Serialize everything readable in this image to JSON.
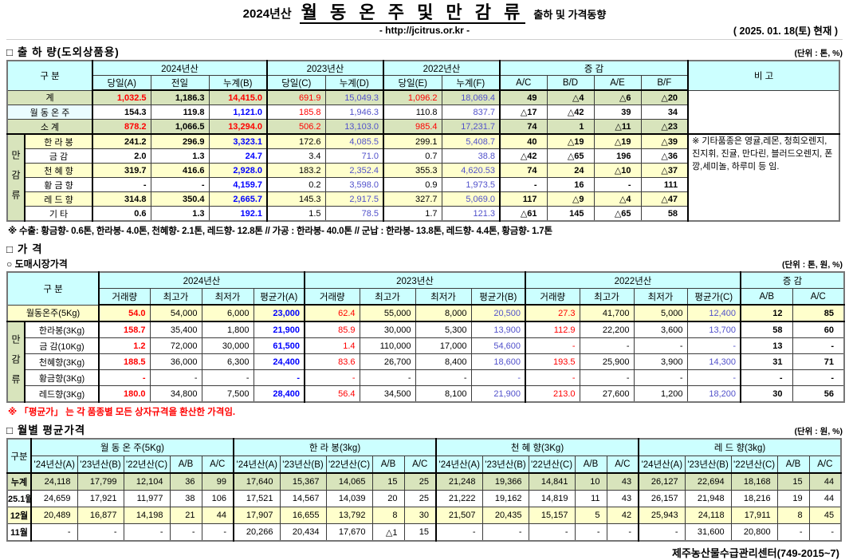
{
  "header": {
    "season": "2024년산",
    "title": "월 동 온 주 및 만 감 류",
    "subtitle": "출하 및 가격동향",
    "url": "- http://jcitrus.or.kr -",
    "date": "( 2025. 01. 18(토) 현재 )"
  },
  "colors": {
    "red": "#ff0000",
    "blue_bold": "#0000ff",
    "blue": "#5151cb",
    "header_bg": "#ccffff",
    "green_row": "#d8e4bc",
    "yellow_row": "#ffffcc"
  },
  "shipment": {
    "section_title": "□ 출 하 량(도외상품용)",
    "unit": "(단위 : 톤, %)",
    "group_label": "만감류",
    "head": {
      "gubun": "구      분",
      "y2024": "2024년산",
      "y2023": "2023년산",
      "y2022": "2022년산",
      "change": "증      감",
      "remark": "비 고",
      "cols": [
        "당일(A)",
        "전일",
        "누계(B)",
        "당일(C)",
        "누계(D)",
        "당일(E)",
        "누계(F)",
        "A/C",
        "B/D",
        "A/E",
        "B/F"
      ]
    },
    "rows": [
      {
        "type": "total",
        "bg": "green",
        "label": "계",
        "values": [
          "1,032.5",
          "1,186.3",
          "14,415.0",
          "691.9",
          "15,049.3",
          "1,096.2",
          "18,069.4",
          "49",
          "△4",
          "△6",
          "△20"
        ]
      },
      {
        "type": "wdj",
        "bg": "white",
        "label": "월 동 온 주",
        "values": [
          "154.3",
          "119.8",
          "1,121.0",
          "185.8",
          "1,946.3",
          "110.8",
          "837.7",
          "△17",
          "△42",
          "39",
          "34"
        ]
      },
      {
        "type": "total",
        "bg": "green",
        "label": "소      계",
        "values": [
          "878.2",
          "1,066.5",
          "13,294.0",
          "506.2",
          "13,103.0",
          "985.4",
          "17,231.7",
          "74",
          "1",
          "△11",
          "△23"
        ]
      },
      {
        "type": "item",
        "bg": "yellow",
        "label": "한 라 봉",
        "values": [
          "241.2",
          "296.9",
          "3,323.1",
          "172.6",
          "4,085.5",
          "299.1",
          "5,408.7",
          "40",
          "△19",
          "△19",
          "△39"
        ]
      },
      {
        "type": "item",
        "bg": "white",
        "label": "금      감",
        "values": [
          "2.0",
          "1.3",
          "24.7",
          "3.4",
          "71.0",
          "0.7",
          "38.8",
          "△42",
          "△65",
          "196",
          "△36"
        ]
      },
      {
        "type": "item",
        "bg": "yellow",
        "label": "천 혜 향",
        "values": [
          "319.7",
          "416.6",
          "2,928.0",
          "183.2",
          "2,352.4",
          "355.3",
          "4,620.53",
          "74",
          "24",
          "△10",
          "△37"
        ]
      },
      {
        "type": "item",
        "bg": "white",
        "label": "황 금 향",
        "values": [
          "-",
          "-",
          "4,159.7",
          "0.2",
          "3,598.0",
          "0.9",
          "1,973.5",
          "-",
          "16",
          "-",
          "111"
        ]
      },
      {
        "type": "item",
        "bg": "yellow",
        "label": "레 드 향",
        "values": [
          "314.8",
          "350.4",
          "2,665.7",
          "145.3",
          "2,917.5",
          "327.7",
          "5,069.0",
          "117",
          "△9",
          "△4",
          "△47"
        ]
      },
      {
        "type": "item",
        "bg": "white",
        "label": "기      타",
        "values": [
          "0.6",
          "1.3",
          "192.1",
          "1.5",
          "78.5",
          "1.7",
          "121.3",
          "△61",
          "145",
          "△65",
          "58"
        ]
      }
    ],
    "remark": "※ 기타품종은 영귤,레몬, 청희오렌지, 진지휘, 진귤, 만다린, 블러드오렌지, 폰깡,세미놀, 하루미 등 임.",
    "footnote": "※ 수출: 황금향- 0.6톤, 한라봉- 4.0톤, 천혜향- 2.1톤, 레드향- 12.8톤  //  가공 : 한라봉- 40.0톤  //  군납 : 한라봉- 13.8톤, 레드향- 4.4톤, 황금향- 1.7톤"
  },
  "price": {
    "section_title": "□ 가    격",
    "sub_section": "○ 도매시장가격",
    "unit": "(단위 : 톤, 원, %)",
    "group_label": "만감류",
    "head": {
      "gubun": "구      분",
      "y2024": "2024년산",
      "y2023": "2023년산",
      "y2022": "2022년산",
      "change": "증    감",
      "cols": [
        "거래량",
        "최고가",
        "최저가",
        "평균가(A)",
        "거래량",
        "최고가",
        "최저가",
        "평균가(B)",
        "거래량",
        "최고가",
        "최저가",
        "평균가(C)",
        "A/B",
        "A/C"
      ]
    },
    "rows": [
      {
        "bg": "yellow",
        "label": "월동온주(5Kg)",
        "values": [
          "54.0",
          "54,000",
          "6,000",
          "23,000",
          "62.4",
          "55,000",
          "8,000",
          "20,500",
          "27.3",
          "41,700",
          "5,000",
          "12,400",
          "12",
          "85"
        ]
      },
      {
        "bg": "white",
        "label": "한라봉(3Kg)",
        "values": [
          "158.7",
          "35,400",
          "1,800",
          "21,900",
          "85.9",
          "30,000",
          "5,300",
          "13,900",
          "112.9",
          "22,200",
          "3,600",
          "13,700",
          "58",
          "60"
        ]
      },
      {
        "bg": "white",
        "label": "금 감(10Kg)",
        "values": [
          "1.2",
          "72,000",
          "30,000",
          "61,500",
          "1.4",
          "110,000",
          "17,000",
          "54,600",
          "-",
          "-",
          "-",
          "-",
          "13",
          "-"
        ]
      },
      {
        "bg": "white",
        "label": "천혜향(3Kg)",
        "values": [
          "188.5",
          "36,000",
          "6,300",
          "24,400",
          "83.6",
          "26,700",
          "8,400",
          "18,600",
          "193.5",
          "25,900",
          "3,900",
          "14,300",
          "31",
          "71"
        ]
      },
      {
        "bg": "white",
        "label": "황금향(3Kg)",
        "values": [
          "-",
          "-",
          "-",
          "-",
          "-",
          "-",
          "-",
          "-",
          "-",
          "-",
          "-",
          "-",
          "-",
          "-"
        ]
      },
      {
        "bg": "white",
        "label": "레드향(3Kg)",
        "values": [
          "180.0",
          "34,800",
          "7,500",
          "28,400",
          "56.4",
          "34,500",
          "8,100",
          "21,900",
          "213.0",
          "27,600",
          "1,200",
          "18,200",
          "30",
          "56"
        ]
      }
    ],
    "footnote": "※ 「평균가」 는 각 품종별 모든 상자규격을 환산한 가격임."
  },
  "monthly": {
    "section_title": "□ 월별 평균가격",
    "unit": "(단위 : 원, %)",
    "head": {
      "gubun": "구분",
      "groups": [
        "월 동 온 주(5Kg)",
        "한 라 봉(3kg)",
        "천 혜 향(3Kg)",
        "레 드 향(3kg)"
      ],
      "cols": [
        "'24년산(A)",
        "'23년산(B)",
        "'22년산(C)",
        "A/B",
        "A/C"
      ]
    },
    "rows": [
      {
        "bg": "green",
        "label": "누계",
        "values": [
          [
            "24,118",
            "17,799",
            "12,104",
            "36",
            "99"
          ],
          [
            "17,640",
            "15,367",
            "14,065",
            "15",
            "25"
          ],
          [
            "21,248",
            "19,366",
            "14,841",
            "10",
            "43"
          ],
          [
            "26,127",
            "22,694",
            "18,168",
            "15",
            "44"
          ]
        ]
      },
      {
        "bg": "white",
        "label": "25.1월",
        "values": [
          [
            "24,659",
            "17,921",
            "11,977",
            "38",
            "106"
          ],
          [
            "17,521",
            "14,567",
            "14,039",
            "20",
            "25"
          ],
          [
            "21,222",
            "19,162",
            "14,819",
            "11",
            "43"
          ],
          [
            "26,157",
            "21,948",
            "18,216",
            "19",
            "44"
          ]
        ]
      },
      {
        "bg": "yellow",
        "label": "12월",
        "values": [
          [
            "20,489",
            "16,877",
            "14,198",
            "21",
            "44"
          ],
          [
            "17,907",
            "16,655",
            "13,792",
            "8",
            "30"
          ],
          [
            "21,507",
            "20,435",
            "15,157",
            "5",
            "42"
          ],
          [
            "25,943",
            "24,118",
            "17,911",
            "8",
            "45"
          ]
        ]
      },
      {
        "bg": "white",
        "label": "11월",
        "values": [
          [
            "-",
            "-",
            "-",
            "-",
            "-"
          ],
          [
            "20,266",
            "20,434",
            "17,670",
            "△1",
            "15"
          ],
          [
            "-",
            "-",
            "-",
            "-",
            "-"
          ],
          [
            "-",
            "31,600",
            "20,800",
            "-",
            "-"
          ]
        ]
      }
    ]
  },
  "footer": "제주농산물수급관리센터(749-2015~7)"
}
